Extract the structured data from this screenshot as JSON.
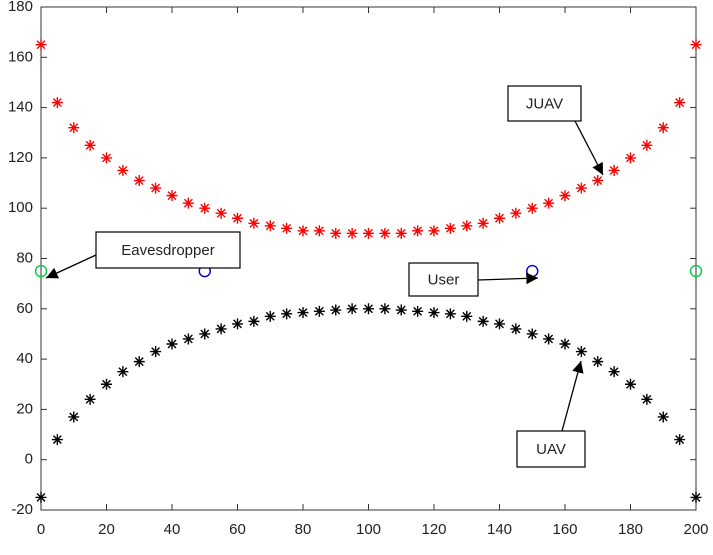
{
  "chart_data": {
    "type": "scatter",
    "xlim": [
      0,
      200
    ],
    "xticks": [
      0,
      20,
      40,
      60,
      80,
      100,
      120,
      140,
      160,
      180,
      200
    ],
    "ylim": [
      -20,
      180
    ],
    "yticks": [
      -20,
      0,
      20,
      40,
      60,
      80,
      100,
      120,
      140,
      160,
      180
    ],
    "grid": false,
    "series": [
      {
        "name": "JUAV",
        "color": "#ff0000",
        "marker": "asterisk",
        "x": [
          0,
          5,
          10,
          15,
          20,
          25,
          30,
          35,
          40,
          45,
          50,
          55,
          60,
          65,
          70,
          75,
          80,
          85,
          90,
          95,
          100,
          105,
          110,
          115,
          120,
          125,
          130,
          135,
          140,
          145,
          150,
          155,
          160,
          165,
          170,
          175,
          180,
          185,
          190,
          195,
          200
        ],
        "values": [
          165,
          142,
          132,
          125,
          120,
          115,
          111,
          108,
          105,
          102,
          100,
          98,
          96,
          94,
          93,
          92,
          91,
          91,
          90,
          90,
          90,
          90,
          90,
          91,
          91,
          92,
          93,
          94,
          96,
          98,
          100,
          102,
          105,
          108,
          111,
          115,
          120,
          125,
          132,
          142,
          165
        ]
      },
      {
        "name": "UAV",
        "color": "#000000",
        "marker": "asterisk",
        "x": [
          0,
          5,
          10,
          15,
          20,
          25,
          30,
          35,
          40,
          45,
          50,
          55,
          60,
          65,
          70,
          75,
          80,
          85,
          90,
          95,
          100,
          105,
          110,
          115,
          120,
          125,
          130,
          135,
          140,
          145,
          150,
          155,
          160,
          165,
          170,
          175,
          180,
          185,
          190,
          195,
          200
        ],
        "values": [
          -15,
          8,
          17,
          24,
          30,
          35,
          39,
          43,
          46,
          48,
          50,
          52,
          54,
          55,
          57,
          58,
          58.5,
          59,
          59.5,
          60,
          60,
          60,
          59.5,
          59,
          58.5,
          58,
          57,
          55,
          54,
          52,
          50,
          48,
          46,
          43,
          39,
          35,
          30,
          24,
          17,
          8,
          -15
        ]
      },
      {
        "name": "User",
        "color": "#0000cc",
        "marker": "circle",
        "x": [
          50,
          150
        ],
        "values": [
          75,
          75
        ]
      },
      {
        "name": "Eavesdropper",
        "color": "#00cc44",
        "marker": "circle",
        "x": [
          0,
          200
        ],
        "values": [
          75,
          75
        ]
      }
    ]
  }
}
